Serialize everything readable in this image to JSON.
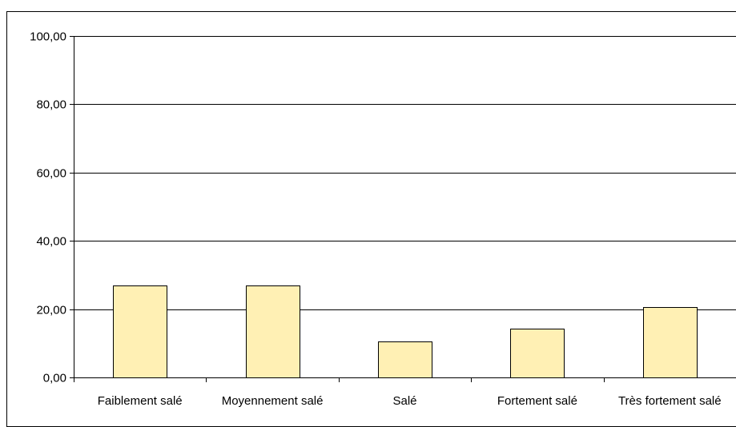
{
  "chart_data": {
    "type": "bar",
    "title": "",
    "xlabel": "",
    "ylabel": "",
    "categories": [
      "Faiblement salé",
      "Moyennement salé",
      "Salé",
      "Fortement salé",
      "Très fortement salé"
    ],
    "values": [
      27.0,
      27.0,
      10.5,
      14.3,
      20.7
    ],
    "ylim": [
      0,
      100
    ],
    "yticks": [
      "0,00",
      "20,00",
      "40,00",
      "60,00",
      "80,00",
      "100,00"
    ],
    "grid": true,
    "legend": "none",
    "colors": {
      "bar_fill": "#FFF0B4",
      "bar_stroke": "#000000",
      "grid": "#000000",
      "axis": "#000000"
    }
  }
}
